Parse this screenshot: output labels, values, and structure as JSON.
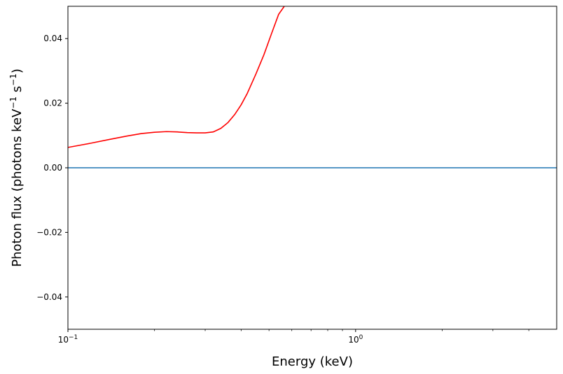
{
  "chart_data": {
    "type": "line",
    "title": "",
    "xlabel": "Energy (keV)",
    "ylabel_main": "Photon flux (photons keV",
    "ylabel_exp1": "−1",
    "ylabel_mid": " s",
    "ylabel_exp2": "−1",
    "ylabel_end": ")",
    "xscale": "log",
    "xlim": [
      0.1,
      5.0
    ],
    "ylim": [
      -0.05,
      0.05
    ],
    "grid": false,
    "x_ticks": [
      {
        "value": 0.1,
        "base": "10",
        "exp": "−1"
      },
      {
        "value": 1.0,
        "base": "10",
        "exp": "0"
      }
    ],
    "y_ticks": [
      {
        "value": -0.04,
        "label": "−0.04"
      },
      {
        "value": -0.02,
        "label": "−0.02"
      },
      {
        "value": 0.0,
        "label": "0.00"
      },
      {
        "value": 0.02,
        "label": "0.02"
      },
      {
        "value": 0.04,
        "label": "0.04"
      }
    ],
    "series": [
      {
        "color": "#ff0000",
        "x": [
          0.1,
          0.12,
          0.14,
          0.16,
          0.18,
          0.2,
          0.22,
          0.24,
          0.26,
          0.28,
          0.3,
          0.32,
          0.34,
          0.36,
          0.38,
          0.4,
          0.42,
          0.45,
          0.48,
          0.51,
          0.54,
          0.565
        ],
        "y": [
          0.0063,
          0.0076,
          0.0088,
          0.0098,
          0.0106,
          0.011,
          0.0112,
          0.0111,
          0.0109,
          0.0108,
          0.0108,
          0.0111,
          0.0122,
          0.014,
          0.0165,
          0.0195,
          0.023,
          0.029,
          0.035,
          0.0415,
          0.0475,
          0.05
        ]
      },
      {
        "color": "#1f77b4",
        "x": [
          0.1,
          5.0
        ],
        "y": [
          0.0,
          0.0
        ]
      }
    ]
  }
}
